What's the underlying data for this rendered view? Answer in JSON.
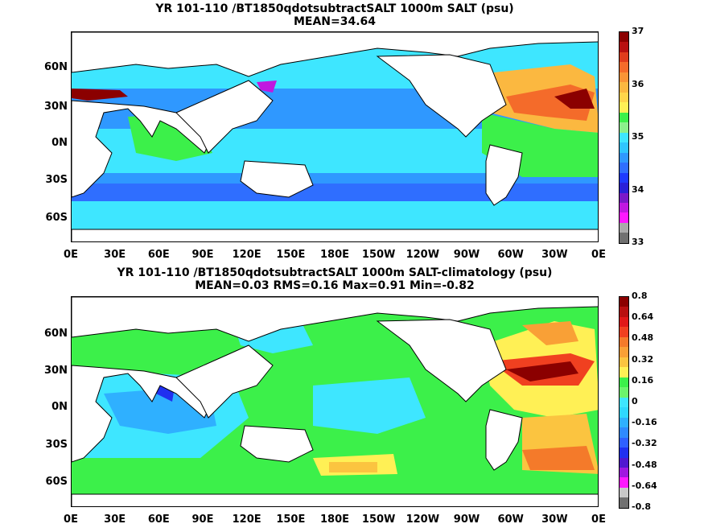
{
  "colors": {
    "ocean_base_top": "#2f98ff",
    "ocean_base_bottom": "#39ff6a",
    "land": "#ffffff",
    "coast": "#000000"
  },
  "panels": [
    {
      "title_line1": "YR 101-110 /BT1850qdotsubtractSALT 1000m SALT (psu)",
      "title_line2": "MEAN=34.64",
      "lat_labels": [
        "60N",
        "30N",
        "0N",
        "30S",
        "60S"
      ],
      "lon_labels": [
        "0E",
        "30E",
        "60E",
        "90E",
        "120E",
        "150E",
        "180E",
        "150W",
        "120W",
        "90W",
        "60W",
        "30W",
        "0E"
      ],
      "colorbar": {
        "labels": [
          "37",
          "36",
          "35",
          "34",
          "33"
        ],
        "segments": [
          "#8b0000",
          "#b81010",
          "#e03c1c",
          "#f46b2a",
          "#f99436",
          "#fbb840",
          "#ffd54a",
          "#fff055",
          "#3cf04a",
          "#8cf08c",
          "#3ee6ff",
          "#2fc6ff",
          "#2f98ff",
          "#2f6eff",
          "#1e3aff",
          "#2a20d8",
          "#7a18c8",
          "#c018e0",
          "#ff18ff",
          "#aaaaaa",
          "#707070"
        ]
      }
    },
    {
      "title_line1": "YR 101-110 /BT1850qdotsubtractSALT 1000m SALT-climatology (psu)",
      "title_line2": "MEAN=0.03   RMS=0.16   Max=0.91   Min=-0.82",
      "lat_labels": [
        "60N",
        "30N",
        "0N",
        "30S",
        "60S"
      ],
      "lon_labels": [
        "0E",
        "30E",
        "60E",
        "90E",
        "120E",
        "150E",
        "180E",
        "150W",
        "120W",
        "90W",
        "60W",
        "30W",
        "0E"
      ],
      "colorbar": {
        "labels": [
          "0.8",
          "0.64",
          "0.48",
          "0.32",
          "0.16",
          "0",
          "-0.16",
          "-0.32",
          "-0.48",
          "-0.64",
          "-0.8"
        ],
        "segments": [
          "#8b0000",
          "#b81010",
          "#e01818",
          "#f04020",
          "#f47a2a",
          "#f9a036",
          "#fbc440",
          "#fff055",
          "#3cf04a",
          "#6cf46c",
          "#3ee6ff",
          "#2fd8ff",
          "#2fb0ff",
          "#2f8aff",
          "#2f60ff",
          "#2030f0",
          "#5018d0",
          "#a018e0",
          "#ff18ff",
          "#c8c8c8",
          "#707070"
        ]
      }
    }
  ]
}
